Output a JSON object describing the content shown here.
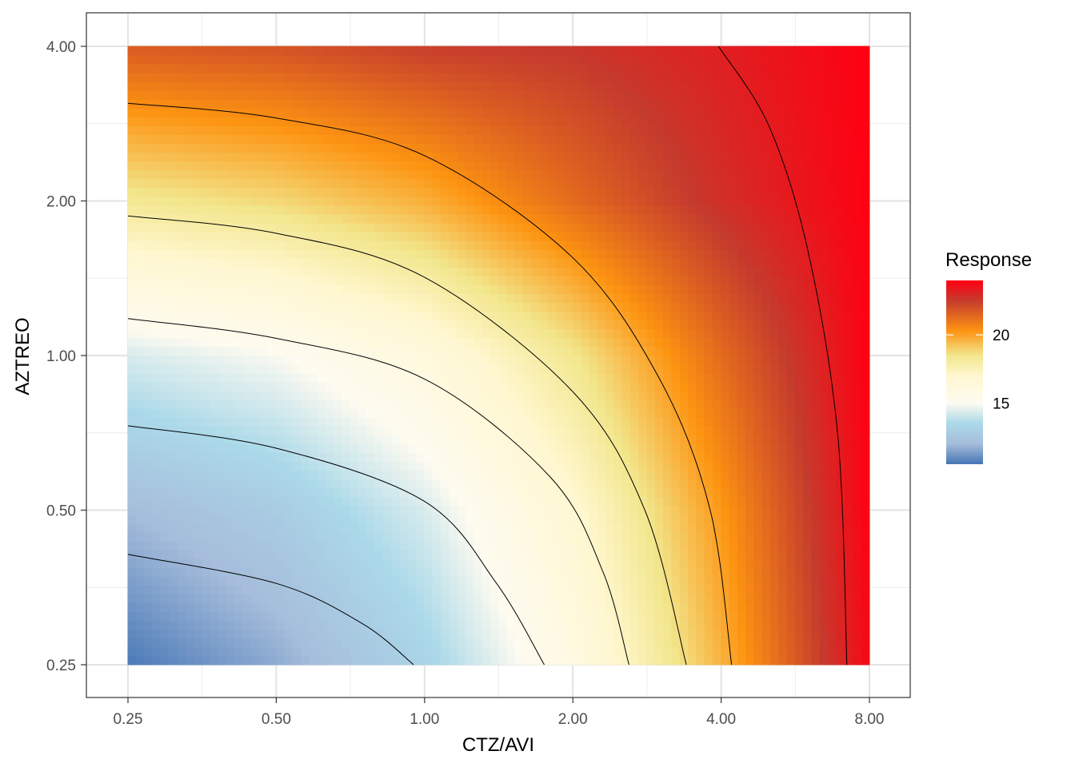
{
  "chart_data": {
    "type": "heatmap",
    "xlabel": "CTZ/AVI",
    "ylabel": "AZTREO",
    "x_scale": "log2",
    "y_scale": "log2",
    "x_ticks": [
      0.25,
      0.5,
      1,
      2,
      4,
      8
    ],
    "x_tick_labels": [
      "0.25",
      "0.50",
      "1.00",
      "2.00",
      "4.00",
      "8.00"
    ],
    "y_ticks": [
      0.25,
      0.5,
      1,
      2,
      4
    ],
    "y_tick_labels": [
      "0.25",
      "0.50",
      "1.00",
      "2.00",
      "4.00"
    ],
    "xlim": [
      0.25,
      8
    ],
    "ylim": [
      0.25,
      4
    ],
    "grid": true,
    "legend": {
      "title": "Response",
      "position": "right",
      "range": [
        10.5,
        24
      ],
      "ticks": [
        15,
        20
      ],
      "tick_labels": [
        "15",
        "20"
      ],
      "colors": [
        {
          "value": 10.5,
          "color": "#4575b4"
        },
        {
          "value": 12.0,
          "color": "#a6bddb"
        },
        {
          "value": 13.5,
          "color": "#abd9e9"
        },
        {
          "value": 15.0,
          "color": "#fefbf0"
        },
        {
          "value": 17.0,
          "color": "#fff7d0"
        },
        {
          "value": 18.5,
          "color": "#f2e68c"
        },
        {
          "value": 20.3,
          "color": "#fd9411"
        },
        {
          "value": 22.5,
          "color": "#c53b2d"
        },
        {
          "value": 24.0,
          "color": "#ff0012"
        }
      ]
    },
    "grid_values": {
      "x": [
        0.25,
        0.5,
        1,
        2,
        4,
        8
      ],
      "y": [
        0.25,
        0.5,
        1,
        2,
        4
      ],
      "z": [
        [
          10.6,
          11.6,
          13.2,
          15.9,
          19.6,
          23.8
        ],
        [
          12.0,
          12.8,
          14.3,
          16.8,
          20.2,
          24.0
        ],
        [
          14.3,
          14.9,
          16.2,
          18.4,
          21.3,
          24.0
        ],
        [
          18.3,
          18.8,
          19.7,
          21.3,
          22.8,
          24.0
        ],
        [
          21.7,
          21.9,
          22.4,
          22.6,
          23.2,
          24.0
        ]
      ]
    },
    "contours": [
      {
        "level": 12,
        "points": [
          [
            0.25,
            0.41
          ],
          [
            0.5,
            0.36
          ],
          [
            0.75,
            0.3
          ],
          [
            0.95,
            0.25
          ]
        ]
      },
      {
        "level": 14,
        "points": [
          [
            0.25,
            0.73
          ],
          [
            0.5,
            0.66
          ],
          [
            1.0,
            0.52
          ],
          [
            1.4,
            0.36
          ],
          [
            1.75,
            0.25
          ]
        ]
      },
      {
        "level": 16,
        "points": [
          [
            0.25,
            1.18
          ],
          [
            0.5,
            1.08
          ],
          [
            1.0,
            0.9
          ],
          [
            1.8,
            0.58
          ],
          [
            2.3,
            0.38
          ],
          [
            2.6,
            0.25
          ]
        ]
      },
      {
        "level": 18,
        "points": [
          [
            0.25,
            1.87
          ],
          [
            0.5,
            1.73
          ],
          [
            1.0,
            1.42
          ],
          [
            2.0,
            0.85
          ],
          [
            2.8,
            0.5
          ],
          [
            3.4,
            0.25
          ]
        ]
      },
      {
        "level": 20,
        "points": [
          [
            0.25,
            3.1
          ],
          [
            0.5,
            2.9
          ],
          [
            1.0,
            2.45
          ],
          [
            2.0,
            1.55
          ],
          [
            3.0,
            0.9
          ],
          [
            3.8,
            0.5
          ],
          [
            4.2,
            0.25
          ]
        ]
      },
      {
        "level": 23,
        "points": [
          [
            3.95,
            4.0
          ],
          [
            5.0,
            2.8
          ],
          [
            6.0,
            1.6
          ],
          [
            6.9,
            0.7
          ],
          [
            7.2,
            0.25
          ]
        ]
      }
    ]
  }
}
